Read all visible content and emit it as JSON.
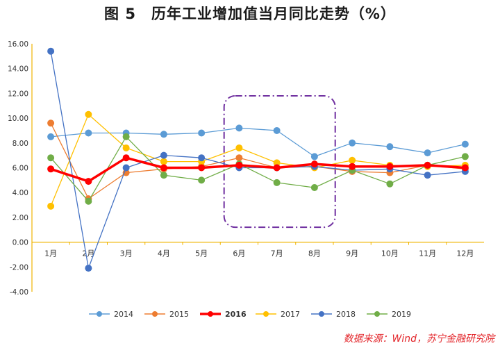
{
  "chart_data": {
    "type": "line",
    "title": "图 5　历年工业增加值当月同比走势（%）",
    "xlabel": "",
    "ylabel": "",
    "categories": [
      "1月",
      "2月",
      "3月",
      "4月",
      "5月",
      "6月",
      "7月",
      "8月",
      "9月",
      "10月",
      "11月",
      "12月"
    ],
    "ylim": [
      -4,
      16
    ],
    "yticks": [
      "16.00",
      "14.00",
      "12.00",
      "10.00",
      "8.00",
      "6.00",
      "4.00",
      "2.00",
      "0.00",
      "-2.00",
      "-4.00"
    ],
    "ytick_values": [
      16,
      14,
      12,
      10,
      8,
      6,
      4,
      2,
      0,
      -2,
      -4
    ],
    "grid": false,
    "legend_position": "bottom",
    "series": [
      {
        "name": "2014",
        "color": "#5b9bd5",
        "emphasis": false,
        "values": [
          8.5,
          8.8,
          8.8,
          8.7,
          8.8,
          9.2,
          9.0,
          6.9,
          8.0,
          7.7,
          7.2,
          7.9
        ]
      },
      {
        "name": "2015",
        "color": "#ed7d31",
        "emphasis": false,
        "values": [
          9.6,
          3.5,
          5.6,
          5.9,
          6.1,
          6.8,
          6.0,
          6.1,
          5.7,
          5.6,
          6.2,
          5.9
        ]
      },
      {
        "name": "2016",
        "color": "#ff0000",
        "emphasis": true,
        "values": [
          5.9,
          4.9,
          6.8,
          6.0,
          6.0,
          6.2,
          6.0,
          6.3,
          6.1,
          6.1,
          6.2,
          6.0
        ]
      },
      {
        "name": "2017",
        "color": "#ffc000",
        "emphasis": false,
        "values": [
          2.9,
          10.3,
          7.6,
          6.5,
          6.5,
          7.6,
          6.4,
          6.0,
          6.6,
          6.2,
          6.1,
          6.2
        ]
      },
      {
        "name": "2018",
        "color": "#4472c4",
        "emphasis": false,
        "values": [
          15.4,
          -2.1,
          6.0,
          7.0,
          6.8,
          6.0,
          6.0,
          6.1,
          5.8,
          5.9,
          5.4,
          5.7
        ]
      },
      {
        "name": "2019",
        "color": "#70ad47",
        "emphasis": false,
        "values": [
          6.8,
          3.3,
          8.5,
          5.4,
          5.0,
          6.3,
          4.8,
          4.4,
          5.8,
          4.7,
          6.2,
          6.9
        ]
      }
    ],
    "highlight_region": {
      "from_category": "6月",
      "to_category": "8月",
      "color": "#7030a0",
      "style": "dash-dot"
    },
    "source": "数据来源：Wind，苏宁金融研究院"
  }
}
